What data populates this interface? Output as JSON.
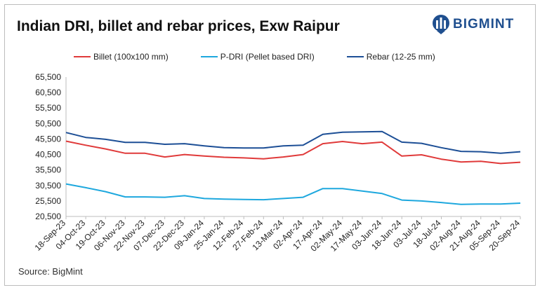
{
  "header": {
    "title": "Indian DRI, billet and rebar prices, Exw Raipur",
    "logo_text": "BIGMINT",
    "logo_icon": "bigmint-logo-icon"
  },
  "source": "Source: BigMint",
  "colors": {
    "billet": "#e03a3a",
    "pdri": "#1ea8de",
    "rebar": "#1d4f96",
    "axis": "#bdbdbd",
    "brand": "#1f4f8f"
  },
  "chart_data": {
    "type": "line",
    "title": "Indian DRI, billet and rebar prices, Exw Raipur",
    "xlabel": "",
    "ylabel": "",
    "ylim": [
      20500,
      65500
    ],
    "yticks": [
      65500,
      60500,
      55500,
      50500,
      45500,
      40500,
      35500,
      30500,
      25500,
      20500
    ],
    "ytick_labels": [
      "65,500",
      "60,500",
      "55,500",
      "50,500",
      "45,500",
      "40,500",
      "35,500",
      "30,500",
      "25,500",
      "20,500"
    ],
    "x": [
      "18-Sep-23",
      "04-Oct-23",
      "19-Oct-23",
      "06-Nov-23",
      "22-Nov-23",
      "07-Dec-23",
      "22-Dec-23",
      "09-Jan-24",
      "25-Jan-24",
      "12-Feb-24",
      "27-Feb-24",
      "13-Mar-24",
      "02-Apr-24",
      "17-Apr-24",
      "02-May-24",
      "17-May-24",
      "03-Jun-24",
      "18-Jun-24",
      "03-Jul-24",
      "18-Jul-24",
      "02-Aug-24",
      "21-Aug-24",
      "05-Sep-24",
      "20-Sep-24"
    ],
    "grid": false,
    "legend": "top",
    "series": [
      {
        "name": "Billet (100x100 mm)",
        "color": "#e03a3a",
        "values": [
          44800,
          43500,
          42300,
          40900,
          40900,
          39700,
          40500,
          40000,
          39600,
          39400,
          39100,
          39700,
          40500,
          44000,
          44700,
          44000,
          44500,
          40000,
          40400,
          39000,
          38100,
          38300,
          37600,
          38000
        ]
      },
      {
        "name": "P-DRI (Pellet based DRI)",
        "color": "#1ea8de",
        "values": [
          31000,
          29800,
          28500,
          26800,
          26800,
          26700,
          27200,
          26300,
          26100,
          26000,
          25900,
          26300,
          26700,
          29500,
          29500,
          28700,
          27900,
          25800,
          25500,
          25000,
          24400,
          24500,
          24500,
          24800
        ]
      },
      {
        "name": "Rebar (12-25 mm)",
        "color": "#1d4f96",
        "values": [
          47600,
          46000,
          45400,
          44400,
          44400,
          43800,
          44000,
          43300,
          42700,
          42600,
          42600,
          43300,
          43500,
          47000,
          47700,
          47800,
          47900,
          44500,
          44100,
          42700,
          41500,
          41400,
          40900,
          41400
        ]
      }
    ]
  }
}
